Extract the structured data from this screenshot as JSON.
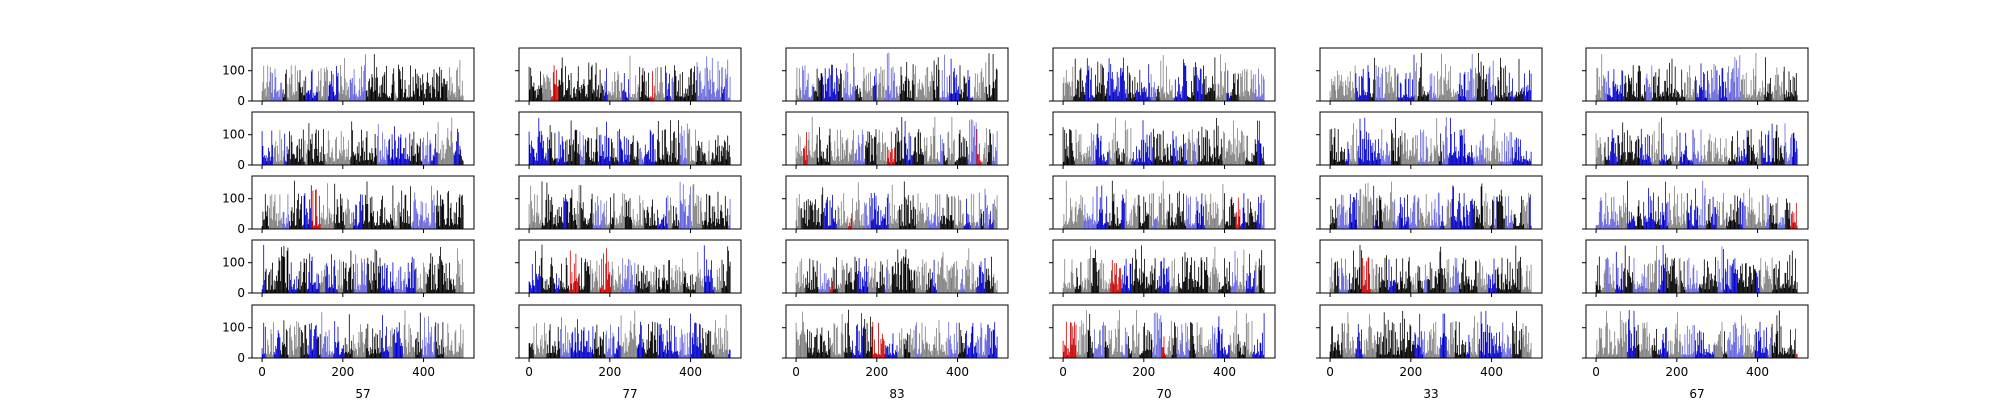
{
  "chart_data": {
    "type": "bar",
    "layout": {
      "rows": 5,
      "cols": 6
    },
    "bars_per_panel": 500,
    "xlim": [
      -25,
      525
    ],
    "ylim": [
      0,
      175
    ],
    "xticks": [
      0,
      200,
      400
    ],
    "yticks": [
      0,
      100
    ],
    "xtick_labels": [
      "0",
      "200",
      "400"
    ],
    "ytick_labels": [
      "0",
      "100"
    ],
    "column_labels": [
      "57",
      "77",
      "83",
      "70",
      "33",
      "67"
    ],
    "bar_colors": [
      "#000000",
      "#808080",
      "#0000cc",
      "#6666dd",
      "#cc0000"
    ],
    "grid": false,
    "legend": "none"
  }
}
